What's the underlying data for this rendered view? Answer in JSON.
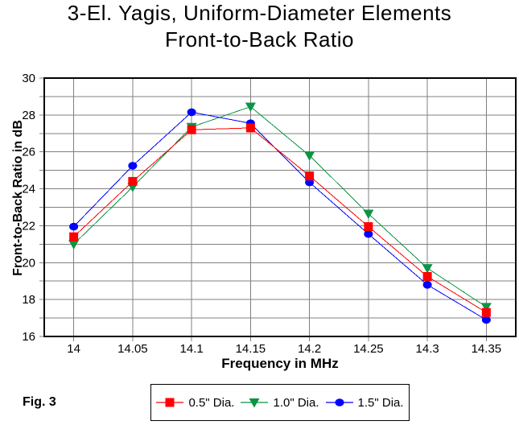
{
  "title_line1": "3-El. Yagis, Uniform-Diameter Elements",
  "title_line2": "Front-to-Back Ratio",
  "fig_label": "Fig. 3",
  "chart_data": {
    "type": "line",
    "x": [
      14,
      14.05,
      14.1,
      14.15,
      14.2,
      14.25,
      14.3,
      14.35
    ],
    "x_tick_labels": [
      "14",
      "14.05",
      "14.1",
      "14.15",
      "14.2",
      "14.25",
      "14.3",
      "14.35"
    ],
    "xlabel": "Frequency in MHz",
    "ylabel": "Front-to-Back Ratio in dB",
    "ylim": [
      16,
      30
    ],
    "y_major_ticks": [
      30,
      28,
      26,
      24,
      22,
      20,
      18,
      16
    ],
    "y_gridline_step": 1,
    "grid": true,
    "legend_position": "bottom-center",
    "gridline_color": "#808080",
    "axis_color": "#000000",
    "series": [
      {
        "name": "0.5\" Dia.",
        "marker": "square",
        "color": "#ff0000",
        "values": [
          21.4,
          24.4,
          27.2,
          27.3,
          24.7,
          21.95,
          19.25,
          17.3
        ]
      },
      {
        "name": "1.0\" Dia.",
        "marker": "triangle-down",
        "color": "#0b9444",
        "values": [
          21.0,
          24.1,
          27.35,
          28.45,
          25.8,
          22.65,
          19.7,
          17.6
        ]
      },
      {
        "name": "1.5\" Dia.",
        "marker": "circle",
        "color": "#0000ff",
        "values": [
          21.95,
          25.25,
          28.15,
          27.55,
          24.35,
          21.55,
          18.8,
          16.9
        ]
      }
    ]
  }
}
